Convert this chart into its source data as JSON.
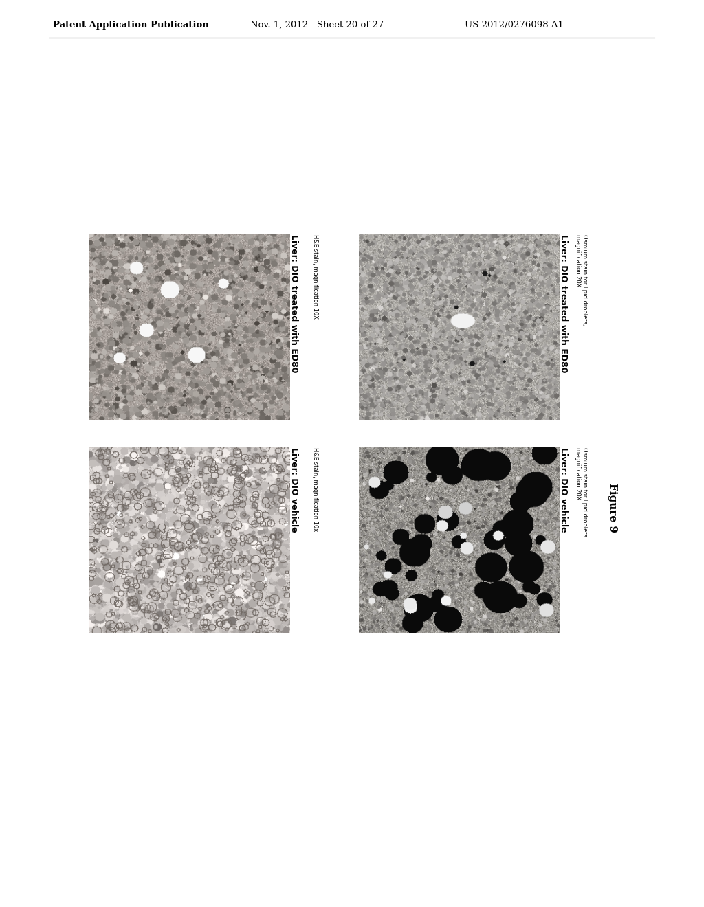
{
  "background_color": "#ffffff",
  "header_left": "Patent Application Publication",
  "header_center": "Nov. 1, 2012   Sheet 20 of 27",
  "header_right": "US 2012/0276098 A1",
  "figure_label": "Figure 9",
  "panel_labels": [
    {
      "img_key": "he_ed80_10x",
      "title_bold": "Liver: DIO treated with ED80",
      "title_sub": "H&E stain, magnification 10X"
    },
    {
      "img_key": "osmium_ed80_20x",
      "title_bold": "Liver: DIO treated with ED80",
      "title_sub": "Osmium stain for lipid droplets,\nmagnification 20X"
    },
    {
      "img_key": "he_vehicle_10x",
      "title_bold": "Liver: DIO vehicle",
      "title_sub": "H&E stain, magnification 10x"
    },
    {
      "img_key": "osmium_vehicle_20x",
      "title_bold": "Liver: DIO vehicle",
      "title_sub": "Osmium stain for lipid droplets\nmagnification 20X"
    }
  ]
}
